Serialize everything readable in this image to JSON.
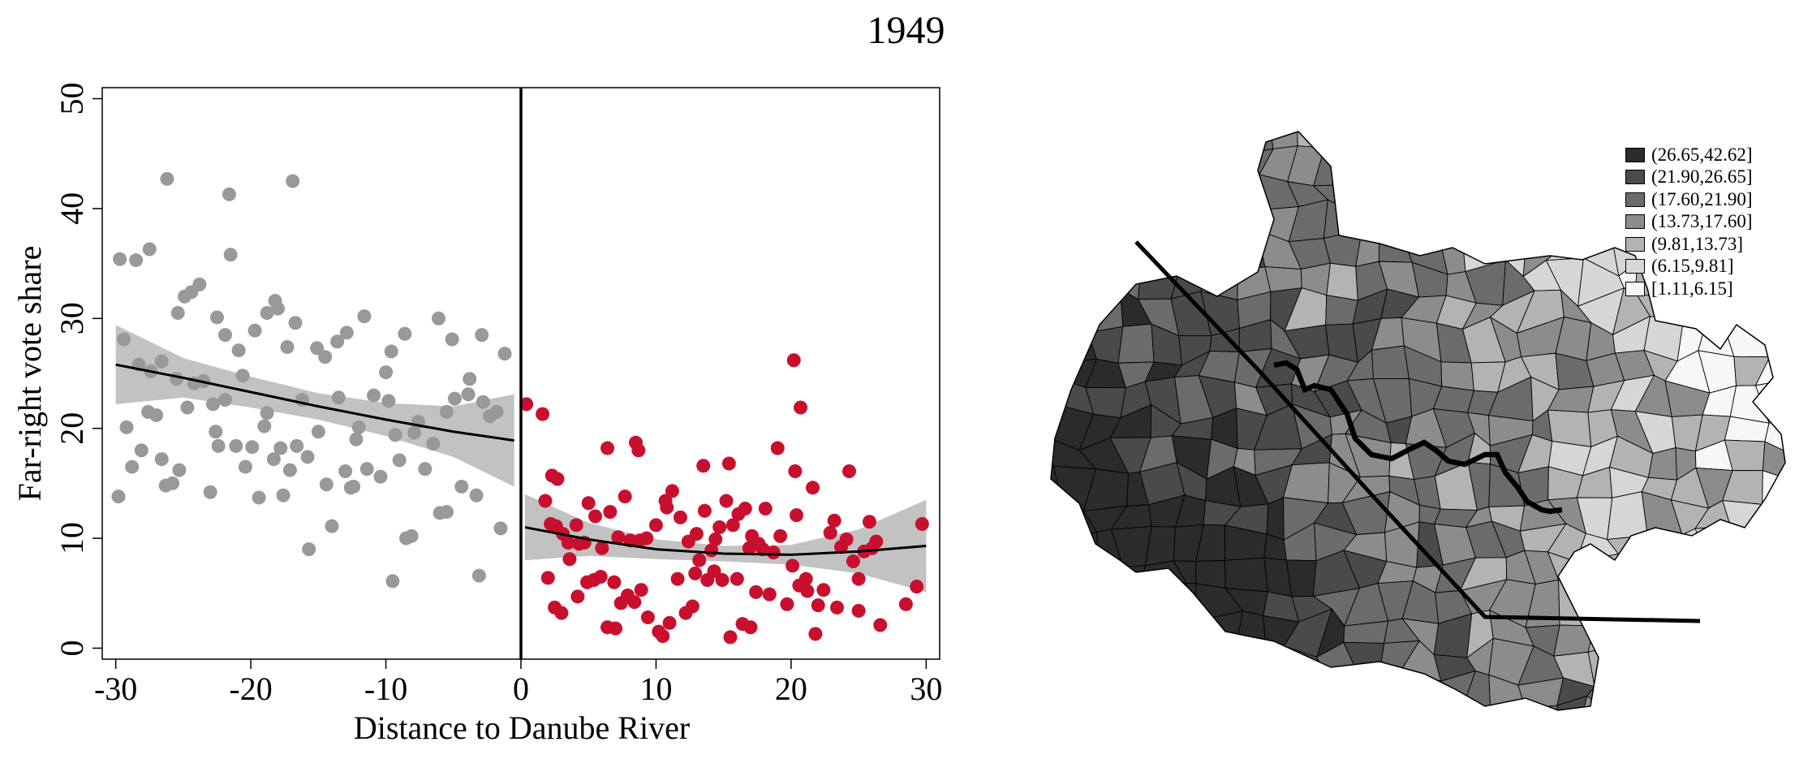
{
  "title": "1949",
  "chart_data": {
    "type": "scatter",
    "xlabel": "Distance to Danube River",
    "ylabel": "Far-right vote share",
    "xlim": [
      -31,
      31
    ],
    "ylim": [
      -1,
      51
    ],
    "xticks": [
      -30,
      -20,
      -10,
      0,
      10,
      20,
      30
    ],
    "yticks": [
      0,
      10,
      20,
      30,
      40,
      50
    ],
    "cutoff": 0,
    "grid": false,
    "colors": {
      "left": "#999999",
      "right": "#c8102e",
      "band": "#c2c2c2",
      "fit": "#000000"
    },
    "series": [
      {
        "side": "left",
        "points": [
          [
            -29.7,
            35.4
          ],
          [
            -28.5,
            35.3
          ],
          [
            -27.5,
            36.3
          ],
          [
            -26.2,
            42.7
          ],
          [
            -21.6,
            41.3
          ],
          [
            -16.9,
            42.5
          ],
          [
            -21.5,
            35.8
          ],
          [
            -29.4,
            28.1
          ],
          [
            -28.3,
            25.8
          ],
          [
            -27.4,
            25.2
          ],
          [
            -26.6,
            26.1
          ],
          [
            -25.4,
            30.5
          ],
          [
            -24.9,
            32.0
          ],
          [
            -24.4,
            32.4
          ],
          [
            -23.8,
            33.1
          ],
          [
            -22.5,
            30.1
          ],
          [
            -21.9,
            28.5
          ],
          [
            -20.9,
            27.1
          ],
          [
            -19.7,
            28.9
          ],
          [
            -18.8,
            30.5
          ],
          [
            -18.2,
            31.6
          ],
          [
            -18.0,
            30.9
          ],
          [
            -17.3,
            27.4
          ],
          [
            -16.7,
            29.6
          ],
          [
            -15.1,
            27.3
          ],
          [
            -14.5,
            26.5
          ],
          [
            -13.6,
            27.9
          ],
          [
            -12.9,
            28.7
          ],
          [
            -11.6,
            30.2
          ],
          [
            -9.6,
            27.0
          ],
          [
            -8.6,
            28.6
          ],
          [
            -6.1,
            30.0
          ],
          [
            -5.1,
            28.1
          ],
          [
            -3.8,
            24.5
          ],
          [
            -2.9,
            28.5
          ],
          [
            -1.2,
            26.8
          ],
          [
            -29.2,
            20.1
          ],
          [
            -28.8,
            16.5
          ],
          [
            -28.1,
            18.0
          ],
          [
            -27.6,
            21.5
          ],
          [
            -27.0,
            21.2
          ],
          [
            -26.6,
            17.2
          ],
          [
            -25.8,
            15.0
          ],
          [
            -25.3,
            16.2
          ],
          [
            -24.7,
            21.9
          ],
          [
            -24.2,
            24.1
          ],
          [
            -23.5,
            24.3
          ],
          [
            -22.6,
            19.7
          ],
          [
            -22.4,
            18.4
          ],
          [
            -21.9,
            22.6
          ],
          [
            -21.1,
            18.4
          ],
          [
            -20.4,
            16.5
          ],
          [
            -19.9,
            18.3
          ],
          [
            -19.4,
            13.7
          ],
          [
            -18.8,
            21.4
          ],
          [
            -18.3,
            17.2
          ],
          [
            -17.6,
            13.9
          ],
          [
            -17.1,
            16.2
          ],
          [
            -16.6,
            18.4
          ],
          [
            -16.2,
            22.6
          ],
          [
            -15.7,
            9.0
          ],
          [
            -15.0,
            19.7
          ],
          [
            -14.4,
            14.9
          ],
          [
            -14.0,
            11.1
          ],
          [
            -13.5,
            22.8
          ],
          [
            -13.0,
            16.1
          ],
          [
            -12.6,
            14.6
          ],
          [
            -12.0,
            20.1
          ],
          [
            -11.4,
            16.3
          ],
          [
            -10.9,
            23.0
          ],
          [
            -10.4,
            15.6
          ],
          [
            -9.8,
            22.5
          ],
          [
            -9.3,
            19.4
          ],
          [
            -9.0,
            17.1
          ],
          [
            -8.5,
            10.0
          ],
          [
            -8.1,
            10.2
          ],
          [
            -7.6,
            20.6
          ],
          [
            -7.1,
            16.3
          ],
          [
            -6.5,
            18.6
          ],
          [
            -6.0,
            12.3
          ],
          [
            -5.5,
            21.5
          ],
          [
            -4.9,
            22.7
          ],
          [
            -4.4,
            14.7
          ],
          [
            -3.9,
            23.1
          ],
          [
            -3.3,
            13.9
          ],
          [
            -2.8,
            22.4
          ],
          [
            -2.3,
            21.1
          ],
          [
            -1.8,
            21.5
          ],
          [
            -1.5,
            10.9
          ],
          [
            -9.5,
            6.1
          ],
          [
            -3.1,
            6.6
          ],
          [
            -29.8,
            13.8
          ],
          [
            -26.3,
            14.8
          ],
          [
            -23.0,
            14.2
          ],
          [
            -15.8,
            17.4
          ],
          [
            -12.4,
            14.7
          ],
          [
            -10.0,
            25.1
          ],
          [
            -5.5,
            12.4
          ],
          [
            -17.8,
            18.2
          ],
          [
            -20.6,
            24.8
          ],
          [
            -25.5,
            24.5
          ],
          [
            -22.8,
            22.2
          ],
          [
            -19.0,
            20.2
          ],
          [
            -12.2,
            19.0
          ],
          [
            -7.9,
            19.6
          ]
        ]
      },
      {
        "side": "right",
        "points": [
          [
            0.4,
            22.2
          ],
          [
            1.6,
            21.3
          ],
          [
            20.2,
            26.2
          ],
          [
            20.7,
            21.9
          ],
          [
            6.4,
            18.2
          ],
          [
            8.5,
            18.7
          ],
          [
            8.7,
            18.0
          ],
          [
            19.0,
            18.2
          ],
          [
            13.5,
            16.6
          ],
          [
            15.4,
            16.8
          ],
          [
            2.3,
            15.7
          ],
          [
            2.7,
            15.4
          ],
          [
            20.3,
            16.1
          ],
          [
            24.3,
            16.1
          ],
          [
            1.8,
            13.4
          ],
          [
            2.2,
            11.3
          ],
          [
            2.6,
            11.1
          ],
          [
            3.1,
            10.4
          ],
          [
            3.5,
            9.6
          ],
          [
            4.1,
            11.2
          ],
          [
            4.3,
            9.5
          ],
          [
            4.7,
            9.6
          ],
          [
            5.0,
            13.2
          ],
          [
            5.5,
            12.0
          ],
          [
            6.0,
            9.1
          ],
          [
            6.6,
            12.4
          ],
          [
            7.2,
            10.1
          ],
          [
            7.7,
            13.8
          ],
          [
            8.1,
            9.8
          ],
          [
            8.8,
            9.8
          ],
          [
            9.3,
            10.0
          ],
          [
            10.0,
            11.2
          ],
          [
            10.7,
            13.4
          ],
          [
            11.2,
            14.3
          ],
          [
            11.8,
            11.9
          ],
          [
            12.4,
            9.7
          ],
          [
            13.0,
            10.4
          ],
          [
            13.6,
            12.5
          ],
          [
            14.1,
            8.9
          ],
          [
            14.7,
            11.0
          ],
          [
            15.2,
            13.4
          ],
          [
            15.7,
            11.2
          ],
          [
            16.1,
            12.2
          ],
          [
            16.6,
            12.7
          ],
          [
            17.1,
            10.2
          ],
          [
            17.6,
            9.5
          ],
          [
            18.1,
            12.7
          ],
          [
            18.7,
            8.7
          ],
          [
            19.2,
            10.2
          ],
          [
            19.7,
            4.0
          ],
          [
            20.1,
            7.5
          ],
          [
            20.6,
            5.7
          ],
          [
            21.1,
            6.3
          ],
          [
            21.6,
            14.6
          ],
          [
            22.0,
            3.9
          ],
          [
            22.4,
            5.3
          ],
          [
            22.9,
            10.5
          ],
          [
            23.2,
            11.6
          ],
          [
            23.7,
            9.2
          ],
          [
            24.1,
            9.9
          ],
          [
            24.6,
            7.9
          ],
          [
            25.0,
            6.3
          ],
          [
            25.4,
            8.8
          ],
          [
            25.8,
            11.5
          ],
          [
            26.3,
            9.7
          ],
          [
            26.6,
            2.1
          ],
          [
            28.5,
            4.0
          ],
          [
            29.3,
            5.6
          ],
          [
            29.7,
            11.3
          ],
          [
            2.0,
            6.4
          ],
          [
            2.5,
            3.7
          ],
          [
            3.0,
            3.2
          ],
          [
            3.6,
            8.1
          ],
          [
            4.2,
            4.7
          ],
          [
            4.9,
            6.0
          ],
          [
            5.4,
            6.2
          ],
          [
            5.9,
            6.5
          ],
          [
            6.4,
            1.9
          ],
          [
            7.0,
            1.8
          ],
          [
            7.4,
            4.1
          ],
          [
            7.9,
            4.8
          ],
          [
            8.4,
            4.2
          ],
          [
            8.9,
            5.3
          ],
          [
            9.4,
            2.8
          ],
          [
            10.2,
            1.5
          ],
          [
            10.5,
            1.1
          ],
          [
            11.0,
            2.3
          ],
          [
            11.6,
            6.3
          ],
          [
            12.2,
            3.2
          ],
          [
            12.7,
            3.8
          ],
          [
            13.2,
            8.0
          ],
          [
            13.8,
            6.2
          ],
          [
            14.3,
            7.0
          ],
          [
            14.9,
            6.2
          ],
          [
            15.5,
            1.0
          ],
          [
            16.0,
            6.3
          ],
          [
            16.4,
            2.2
          ],
          [
            17.0,
            1.9
          ],
          [
            17.4,
            5.1
          ],
          [
            17.9,
            9.0
          ],
          [
            18.4,
            4.9
          ],
          [
            20.4,
            12.1
          ],
          [
            21.8,
            1.3
          ],
          [
            23.4,
            3.7
          ],
          [
            25.0,
            3.4
          ],
          [
            26.0,
            9.1
          ],
          [
            12.9,
            6.8
          ],
          [
            10.8,
            12.8
          ],
          [
            14.4,
            9.9
          ],
          [
            16.9,
            9.1
          ],
          [
            6.9,
            6.0
          ],
          [
            21.2,
            5.2
          ]
        ]
      }
    ],
    "fits": [
      {
        "side": "left",
        "line": [
          [
            -30,
            25.8
          ],
          [
            -25,
            24.6
          ],
          [
            -20,
            23.3
          ],
          [
            -15,
            22.0
          ],
          [
            -10,
            20.8
          ],
          [
            -5,
            19.7
          ],
          [
            -0.5,
            18.9
          ]
        ],
        "lower": [
          [
            -30,
            22.2
          ],
          [
            -25,
            22.8
          ],
          [
            -20,
            21.9
          ],
          [
            -15,
            20.8
          ],
          [
            -10,
            19.3
          ],
          [
            -5,
            17.4
          ],
          [
            -0.5,
            14.7
          ]
        ],
        "upper": [
          [
            -30,
            29.4
          ],
          [
            -25,
            26.4
          ],
          [
            -20,
            24.7
          ],
          [
            -15,
            23.2
          ],
          [
            -10,
            22.3
          ],
          [
            -5,
            22.0
          ],
          [
            -0.5,
            23.1
          ]
        ]
      },
      {
        "side": "right",
        "line": [
          [
            0.3,
            11.0
          ],
          [
            5,
            9.9
          ],
          [
            10,
            9.0
          ],
          [
            15,
            8.6
          ],
          [
            20,
            8.5
          ],
          [
            25,
            8.8
          ],
          [
            30,
            9.3
          ]
        ],
        "lower": [
          [
            0.3,
            8.0
          ],
          [
            5,
            8.4
          ],
          [
            10,
            8.1
          ],
          [
            15,
            7.9
          ],
          [
            20,
            7.6
          ],
          [
            25,
            6.8
          ],
          [
            30,
            5.1
          ]
        ],
        "upper": [
          [
            0.3,
            14.0
          ],
          [
            5,
            11.4
          ],
          [
            10,
            9.9
          ],
          [
            15,
            9.3
          ],
          [
            20,
            9.4
          ],
          [
            25,
            10.8
          ],
          [
            30,
            13.5
          ]
        ]
      }
    ]
  },
  "map": {
    "river_color": "#000000",
    "legend": {
      "items": [
        {
          "label": "(26.65,42.62]",
          "color": "#2b2b2b"
        },
        {
          "label": "(21.90,26.65]",
          "color": "#4a4a4a"
        },
        {
          "label": "(17.60,21.90]",
          "color": "#6b6b6b"
        },
        {
          "label": "(13.73,17.60]",
          "color": "#8c8c8c"
        },
        {
          "label": "(9.81,13.73]",
          "color": "#b3b3b3"
        },
        {
          "label": "(6.15,9.81]",
          "color": "#d6d6d6"
        },
        {
          "label": "[1.11,6.15]",
          "color": "#f7f7f7"
        }
      ]
    }
  }
}
